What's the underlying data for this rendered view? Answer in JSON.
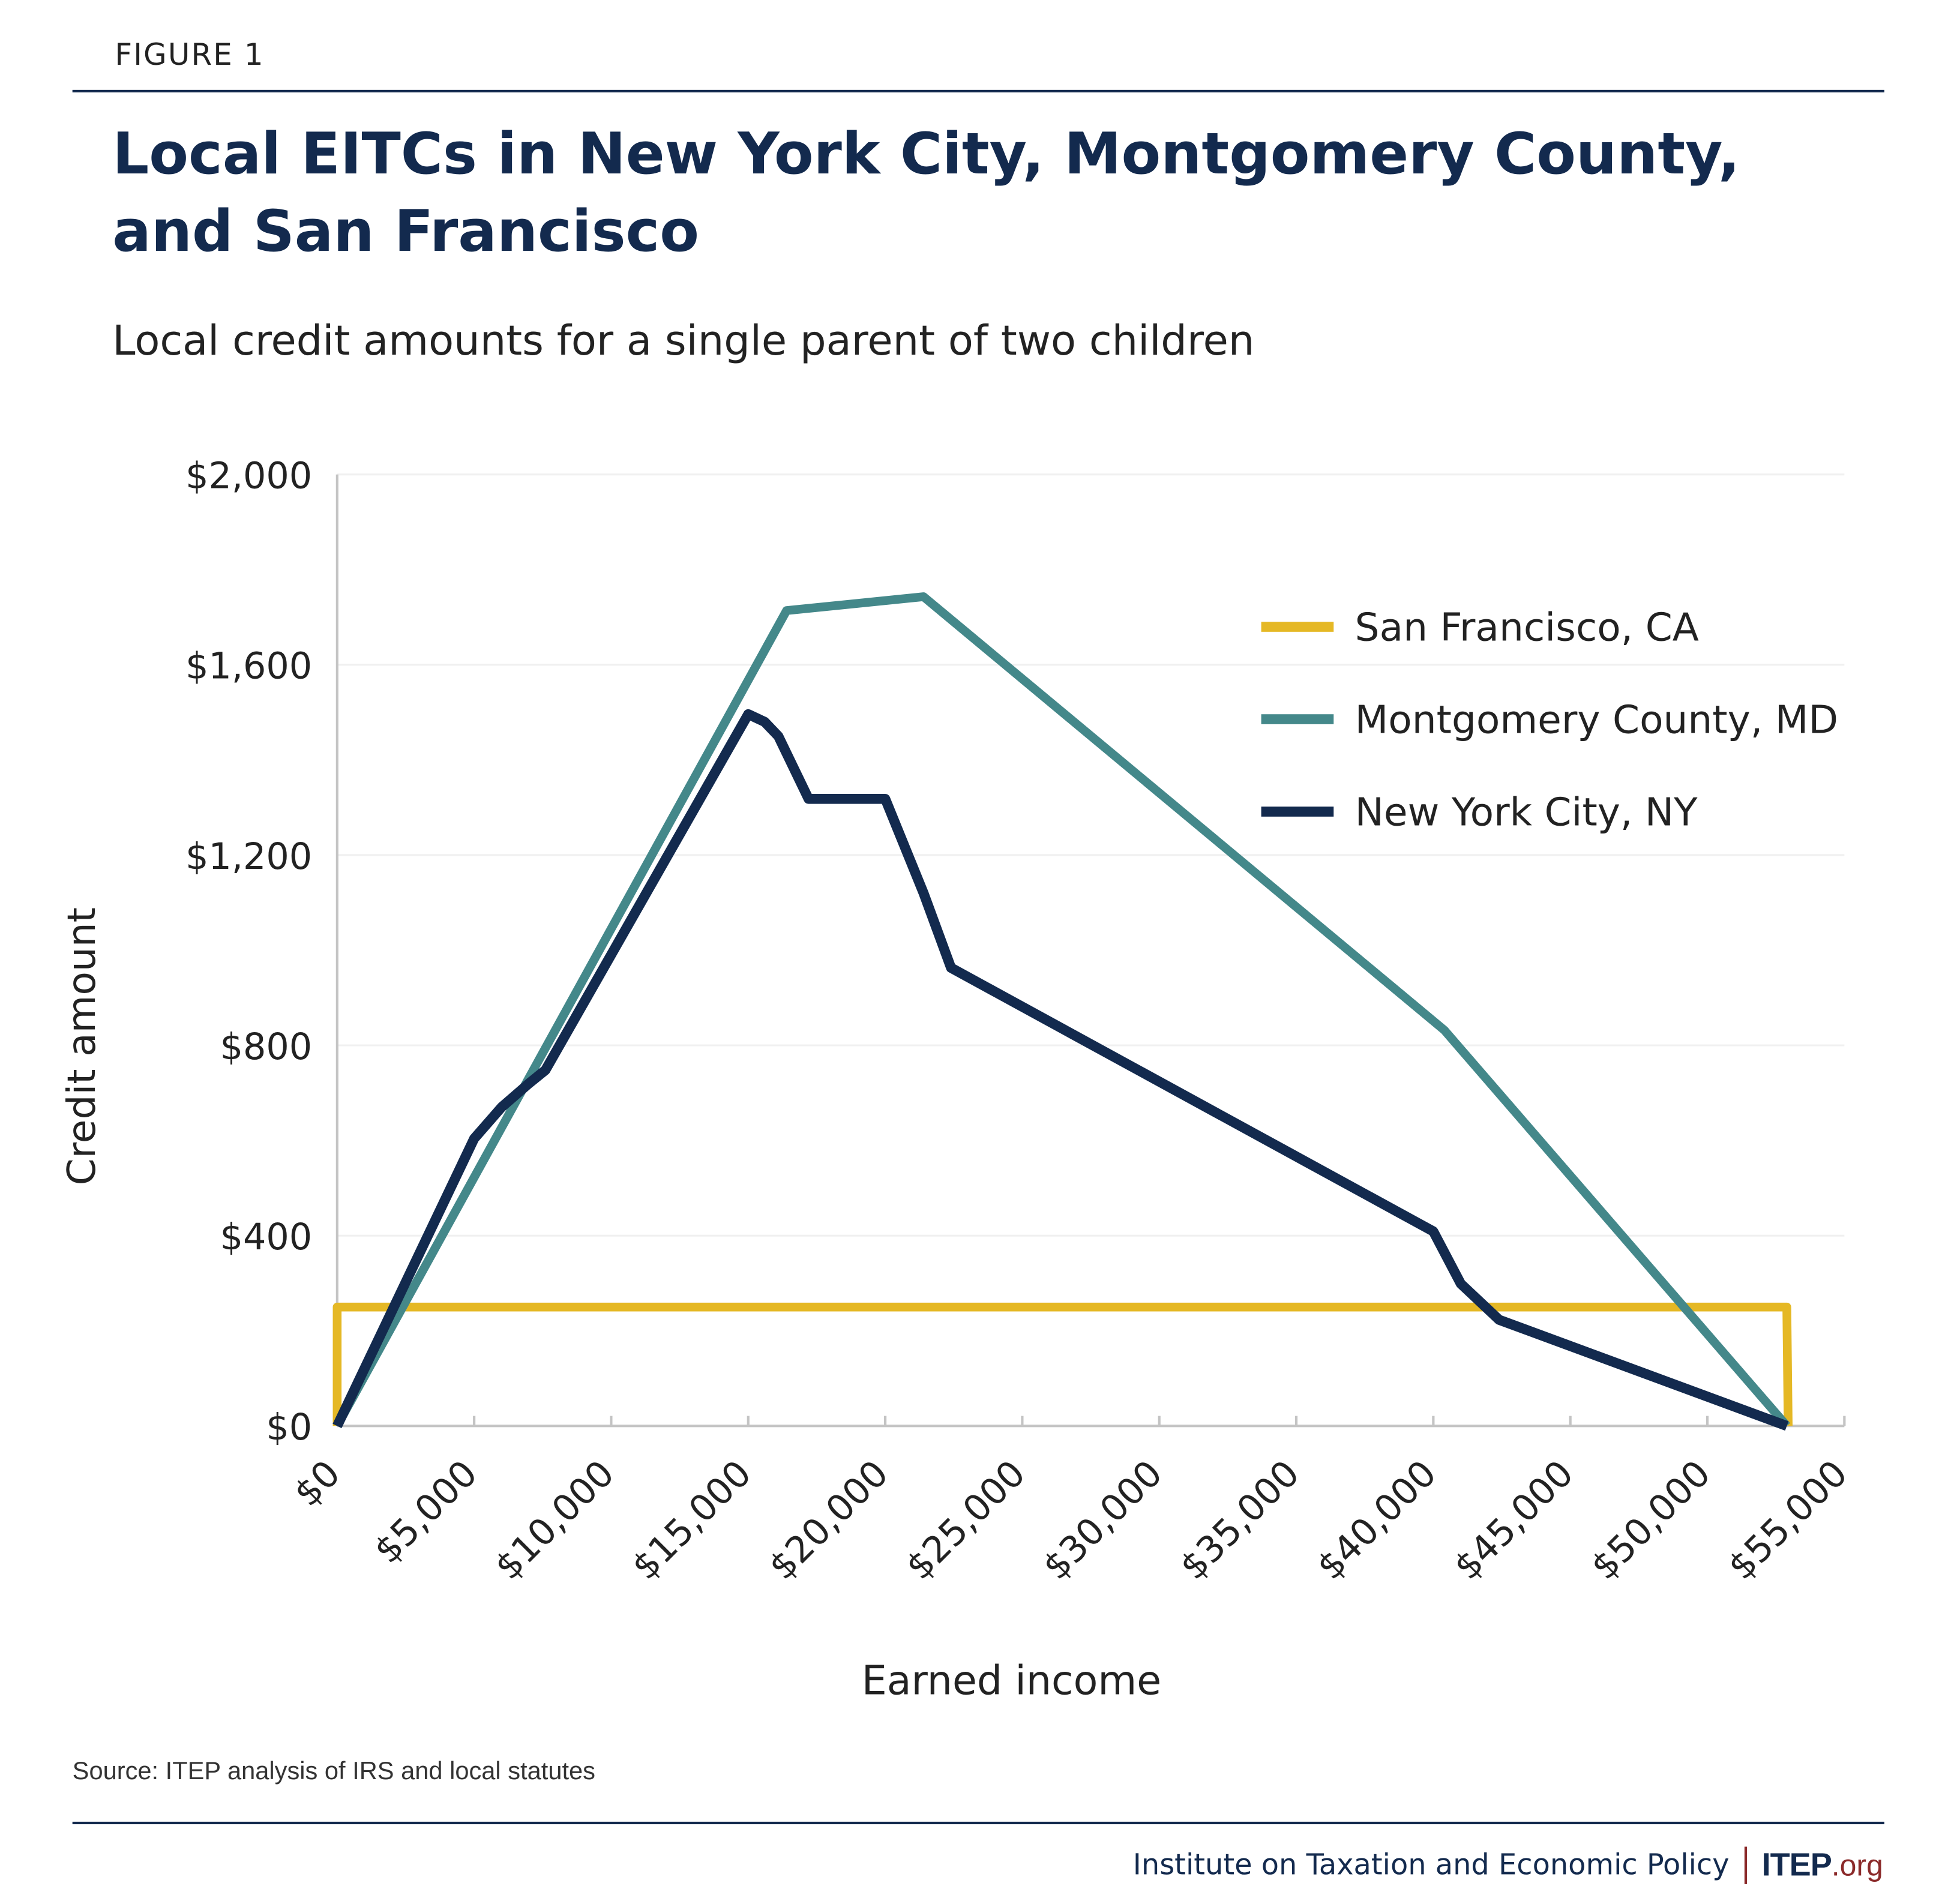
{
  "figure_label": "FIGURE 1",
  "chart_data": {
    "type": "line",
    "title": "Local EITCs in New York City, Montgomery County, and San Francisco",
    "subtitle": "Local credit amounts for a single parent of two children",
    "xlabel": "Earned income",
    "ylabel": "Credit amount",
    "xlim": [
      0,
      55000
    ],
    "ylim": [
      0,
      2000
    ],
    "x_ticks": [
      0,
      5000,
      10000,
      15000,
      20000,
      25000,
      30000,
      35000,
      40000,
      45000,
      50000,
      55000
    ],
    "x_tick_labels": [
      "$0",
      "$5,000",
      "$10,000",
      "$15,000",
      "$20,000",
      "$25,000",
      "$30,000",
      "$35,000",
      "$40,000",
      "$45,000",
      "$50,000",
      "$55,000"
    ],
    "y_ticks": [
      0,
      400,
      800,
      1200,
      1600,
      2000
    ],
    "y_tick_labels": [
      "$0",
      "$400",
      "$800",
      "$1,200",
      "$1,600",
      "$2,000"
    ],
    "grid": "horizontal",
    "legend_position": "top-right",
    "series": [
      {
        "name": "San Francisco, CA",
        "color": "#e5b825",
        "points": [
          [
            0,
            0
          ],
          [
            0,
            250
          ],
          [
            52900,
            250
          ],
          [
            52950,
            0
          ]
        ]
      },
      {
        "name": "Montgomery County, MD",
        "color": "#44888a",
        "points": [
          [
            0,
            0
          ],
          [
            16400,
            1714
          ],
          [
            21400,
            1743
          ],
          [
            40400,
            832
          ],
          [
            52900,
            0
          ]
        ]
      },
      {
        "name": "New York City, NY",
        "color": "#132a4e",
        "points": [
          [
            0,
            0
          ],
          [
            5000,
            604
          ],
          [
            6000,
            670
          ],
          [
            7000,
            720
          ],
          [
            7600,
            748
          ],
          [
            15000,
            1496
          ],
          [
            15600,
            1480
          ],
          [
            16100,
            1450
          ],
          [
            17200,
            1318
          ],
          [
            20000,
            1318
          ],
          [
            21400,
            1120
          ],
          [
            22400,
            963
          ],
          [
            40000,
            409
          ],
          [
            41000,
            299
          ],
          [
            42400,
            223
          ],
          [
            52900,
            0
          ]
        ]
      }
    ]
  },
  "source": "Source: ITEP analysis of IRS and local statutes",
  "footer": {
    "org_name": "Institute on Taxation and Economic Policy",
    "logo_text": "ITEP",
    "logo_suffix": ".org"
  }
}
